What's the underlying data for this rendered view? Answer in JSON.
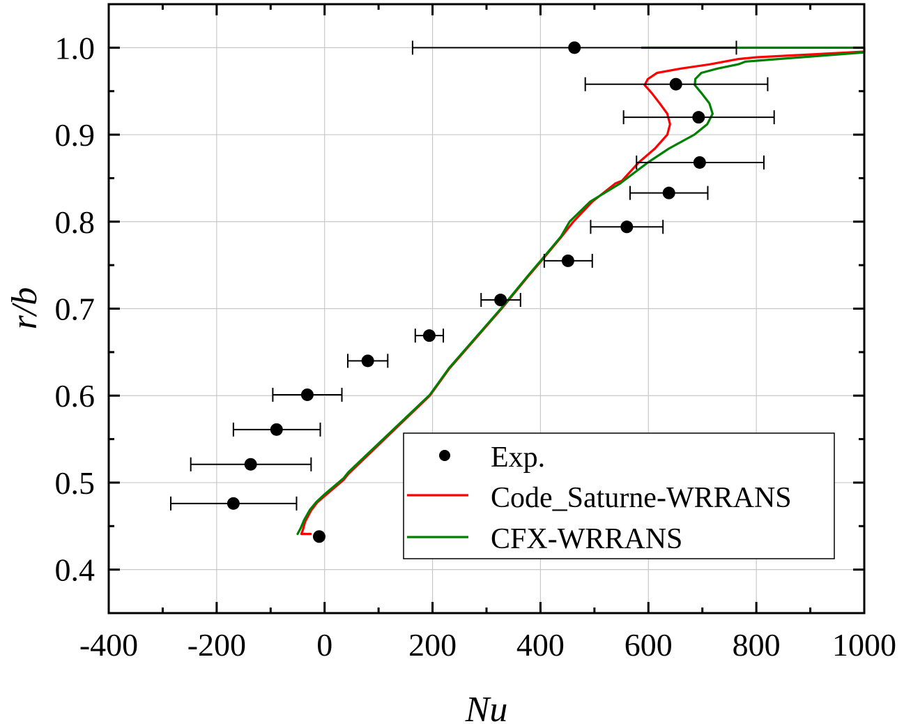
{
  "chart_data": {
    "type": "scatter",
    "title": "",
    "xlabel": "Nu",
    "ylabel": "r/b",
    "xlim": [
      -400,
      1000
    ],
    "ylim": [
      0.35,
      1.05
    ],
    "grid": true,
    "x_ticks": [
      -400,
      -200,
      0,
      200,
      400,
      600,
      800,
      1000
    ],
    "x_tick_labels": [
      "-400",
      "-200",
      "0",
      "200",
      "400",
      "600",
      "800",
      "1000"
    ],
    "x_minor_ticks": [
      -300,
      -100,
      100,
      300,
      500,
      700,
      900
    ],
    "y_ticks": [
      0.4,
      0.5,
      0.6,
      0.7,
      0.8,
      0.9,
      1.0
    ],
    "y_tick_labels": [
      "0.4",
      "0.5",
      "0.6",
      "0.7",
      "0.8",
      "0.9",
      "1.0"
    ],
    "y_minor_ticks": [
      0.45,
      0.55,
      0.65,
      0.75,
      0.85,
      0.95
    ],
    "legend": {
      "placement": "lower-right",
      "entries": [
        {
          "label": "Exp.",
          "kind": "marker",
          "color": "#000000"
        },
        {
          "label": "Code_Saturne-WRRANS",
          "kind": "line",
          "color": "#ff0000"
        },
        {
          "label": "CFX-WRRANS",
          "kind": "line",
          "color": "#008000"
        }
      ]
    },
    "series": [
      {
        "name": "Exp.",
        "kind": "points-with-xerror",
        "color": "#000000",
        "points": [
          {
            "x": 463,
            "y": 1.0,
            "xmin": 163,
            "xmax": 763
          },
          {
            "x": 651,
            "y": 0.958,
            "xmin": 483,
            "xmax": 821
          },
          {
            "x": 693,
            "y": 0.92,
            "xmin": 554,
            "xmax": 833
          },
          {
            "x": 695,
            "y": 0.868,
            "xmin": 578,
            "xmax": 814
          },
          {
            "x": 638,
            "y": 0.833,
            "xmin": 566,
            "xmax": 710
          },
          {
            "x": 560,
            "y": 0.794,
            "xmin": 493,
            "xmax": 627
          },
          {
            "x": 451,
            "y": 0.755,
            "xmin": 407,
            "xmax": 496
          },
          {
            "x": 326,
            "y": 0.71,
            "xmin": 290,
            "xmax": 363
          },
          {
            "x": 194,
            "y": 0.669,
            "xmin": 168,
            "xmax": 220
          },
          {
            "x": 80,
            "y": 0.64,
            "xmin": 43,
            "xmax": 117
          },
          {
            "x": -32,
            "y": 0.601,
            "xmin": -96,
            "xmax": 32
          },
          {
            "x": -89,
            "y": 0.561,
            "xmin": -169,
            "xmax": -8
          },
          {
            "x": -137,
            "y": 0.521,
            "xmin": -248,
            "xmax": -25
          },
          {
            "x": -169,
            "y": 0.476,
            "xmin": -285,
            "xmax": -52
          },
          {
            "x": -10,
            "y": 0.438,
            "xmin": null,
            "xmax": null
          }
        ]
      },
      {
        "name": "Code_Saturne-WRRANS",
        "kind": "line",
        "color": "#ff0000",
        "x": [
          -26,
          -43,
          -40,
          -36,
          -25,
          -14,
          -1,
          35,
          44,
          195,
          231,
          328,
          377,
          403,
          438,
          461,
          496,
          539,
          551,
          582,
          612,
          635,
          640,
          635,
          621,
          606,
          593,
          599,
          616,
          660,
          715,
          767,
          800,
          1000
        ],
        "y": [
          0.441,
          0.441,
          0.446,
          0.455,
          0.468,
          0.477,
          0.484,
          0.503,
          0.51,
          0.6,
          0.631,
          0.7,
          0.737,
          0.756,
          0.782,
          0.8,
          0.823,
          0.844,
          0.847,
          0.868,
          0.884,
          0.9,
          0.912,
          0.924,
          0.936,
          0.948,
          0.957,
          0.964,
          0.971,
          0.976,
          0.981,
          0.987,
          0.989,
          0.9955
        ]
      },
      {
        "name": "CFX-WRRANS",
        "kind": "line",
        "color": "#008000",
        "x": [
          -50,
          -44,
          -38,
          -27,
          -15,
          -1,
          35,
          44,
          195,
          231,
          328,
          377,
          403,
          438,
          454,
          492,
          548,
          554,
          599,
          638,
          685,
          709,
          719,
          713,
          698,
          686,
          687,
          698,
          728,
          767,
          780,
          800,
          1000,
          1000,
          588
        ],
        "y": [
          0.441,
          0.448,
          0.457,
          0.469,
          0.478,
          0.486,
          0.505,
          0.512,
          0.601,
          0.632,
          0.701,
          0.738,
          0.757,
          0.783,
          0.8,
          0.823,
          0.844,
          0.847,
          0.868,
          0.884,
          0.9,
          0.912,
          0.924,
          0.936,
          0.948,
          0.957,
          0.964,
          0.971,
          0.976,
          0.981,
          0.984,
          0.985,
          0.9946,
          1.0,
          1.0
        ]
      }
    ]
  }
}
